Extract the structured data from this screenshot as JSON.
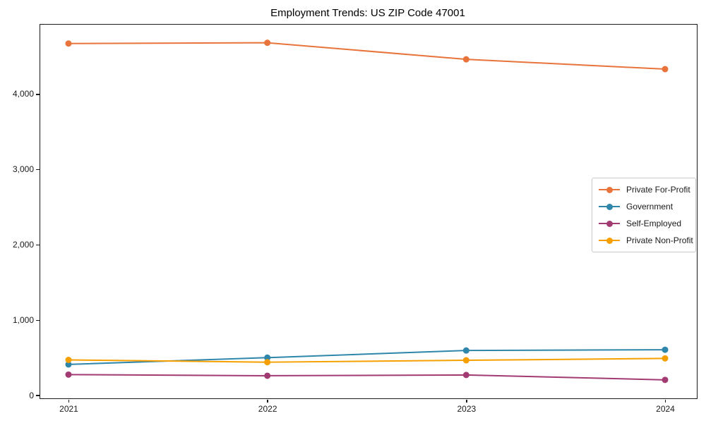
{
  "chart_data": {
    "type": "line",
    "title": "Employment Trends: US ZIP Code 47001",
    "x": [
      2021,
      2022,
      2023,
      2024
    ],
    "xtick_labels": [
      "2021",
      "2022",
      "2023",
      "2024"
    ],
    "yticks": [
      0,
      1000,
      2000,
      3000,
      4000
    ],
    "ytick_labels": [
      "0",
      "1,000",
      "2,000",
      "3,000",
      "4,000"
    ],
    "ylim": [
      -40,
      4920
    ],
    "grid": false,
    "marker": "circle",
    "legend_position": "center-right",
    "series": [
      {
        "name": "Private For-Profit",
        "color": "#E8743B",
        "values": [
          4670,
          4680,
          4460,
          4330
        ]
      },
      {
        "name": "Government",
        "color": "#2E86AB",
        "values": [
          410,
          500,
          595,
          605
        ]
      },
      {
        "name": "Self-Employed",
        "color": "#A23B72",
        "values": [
          275,
          260,
          270,
          205
        ]
      },
      {
        "name": "Private Non-Profit",
        "color": "#F5A000",
        "values": [
          470,
          440,
          465,
          490
        ]
      }
    ]
  },
  "style": {
    "axis_color": "#1a1a1a",
    "text_color": "#000000",
    "legend_border_color": "#c8c8c8",
    "background": "#ffffff"
  }
}
